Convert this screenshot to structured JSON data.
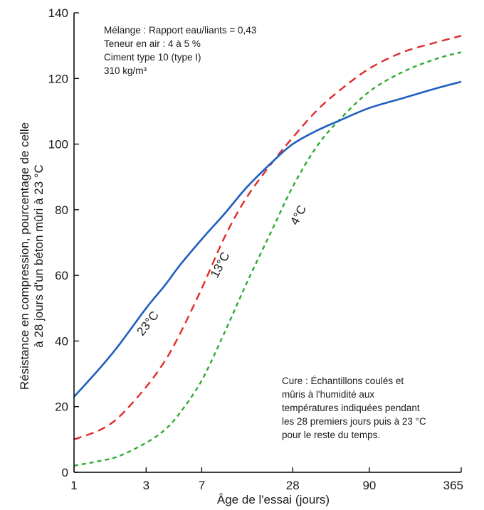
{
  "chart_data": {
    "type": "line",
    "xlabel": "Âge de l'essai (jours)",
    "ylabel_lines": [
      "Résistance en compression, pourcentage de celle",
      "à 28 jours d'un béton mûri à 23 °C"
    ],
    "x_scale": "log",
    "x_ticks": [
      1,
      3,
      7,
      28,
      90,
      365
    ],
    "x_tick_labels": [
      "1",
      "3",
      "7",
      "28",
      "90",
      "365"
    ],
    "y_ticks": [
      0,
      20,
      40,
      60,
      80,
      100,
      120,
      140
    ],
    "y_tick_labels": [
      "0",
      "20",
      "40",
      "60",
      "80",
      "100",
      "120",
      "140"
    ],
    "xlim": [
      1,
      365
    ],
    "ylim": [
      0,
      140
    ],
    "grid": false,
    "mix_note_lines": [
      "Mélange : Rapport eau/liants = 0,43",
      "Teneur en air : 4 à 5 %",
      "Ciment type 10 (type I)",
      "310 kg/m³"
    ],
    "cure_note_lines": [
      "Cure : Échantillons coulés et",
      "mûris à l'humidité aux",
      "températures indiquées pendant",
      "les 28 premiers jours puis à 23 °C",
      "pour le reste du temps."
    ],
    "series": [
      {
        "name": "23°C",
        "color": "#1f5fbf",
        "style": "solid",
        "x": [
          1,
          1.5,
          2,
          3,
          4,
          5,
          7,
          10,
          14,
          21,
          28,
          40,
          56,
          90,
          150,
          250,
          365
        ],
        "y": [
          23,
          32,
          39,
          50,
          57,
          63,
          71,
          79,
          87,
          95,
          100,
          104,
          107,
          111,
          114,
          117,
          119
        ]
      },
      {
        "name": "13°C",
        "color": "#e02a2a",
        "style": "dashed",
        "x": [
          1,
          1.5,
          2,
          3,
          4,
          5,
          7,
          10,
          14,
          21,
          28,
          40,
          56,
          90,
          150,
          250,
          365
        ],
        "y": [
          10,
          13,
          17,
          26,
          34,
          42,
          56,
          72,
          84,
          95,
          102,
          110,
          116,
          123,
          128,
          131,
          133
        ]
      },
      {
        "name": "4°C",
        "color": "#2faa2f",
        "style": "dashed",
        "x": [
          1,
          1.5,
          2,
          3,
          4,
          5,
          7,
          10,
          14,
          21,
          28,
          40,
          56,
          90,
          150,
          250,
          365
        ],
        "y": [
          2,
          3.5,
          5,
          9,
          13,
          18,
          28,
          43,
          58,
          75,
          87,
          99,
          107,
          116,
          122,
          126,
          128
        ]
      }
    ]
  }
}
